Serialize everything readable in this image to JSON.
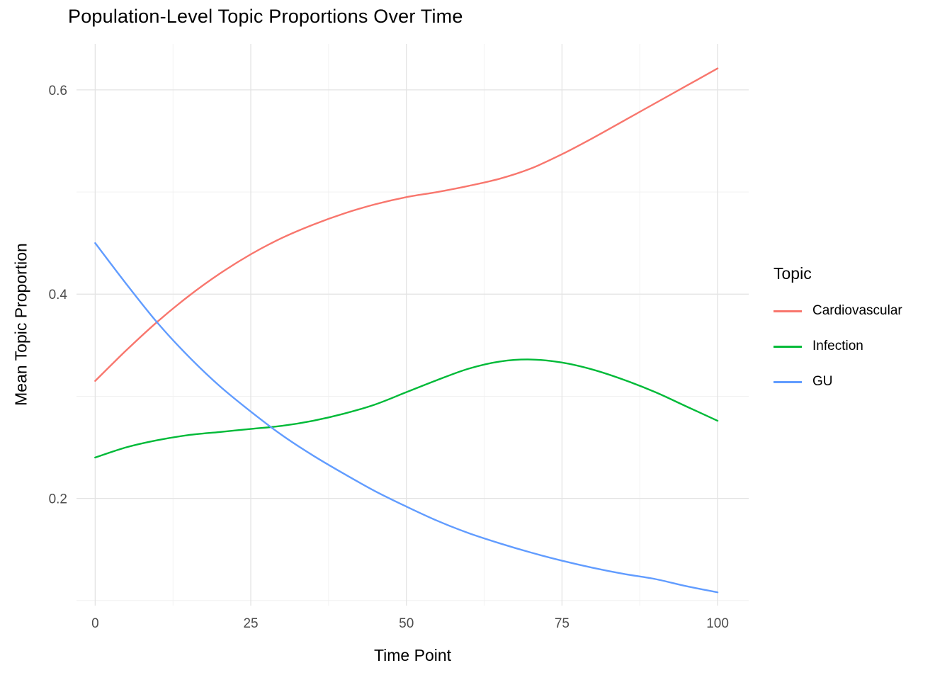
{
  "chart_data": {
    "type": "line",
    "title": "Population-Level Topic Proportions Over Time",
    "xlabel": "Time Point",
    "ylabel": "Mean Topic Proportion",
    "x": [
      0,
      5,
      10,
      15,
      20,
      25,
      30,
      35,
      40,
      45,
      50,
      55,
      60,
      65,
      70,
      75,
      80,
      85,
      90,
      95,
      100
    ],
    "series": [
      {
        "name": "Cardiovascular",
        "color": "#F8766D",
        "values": [
          0.315,
          0.345,
          0.373,
          0.398,
          0.42,
          0.439,
          0.455,
          0.468,
          0.479,
          0.488,
          0.495,
          0.5,
          0.506,
          0.513,
          0.523,
          0.537,
          0.553,
          0.57,
          0.587,
          0.604,
          0.621
        ]
      },
      {
        "name": "Infection",
        "color": "#00BA38",
        "values": [
          0.24,
          0.25,
          0.257,
          0.262,
          0.265,
          0.268,
          0.271,
          0.276,
          0.283,
          0.292,
          0.304,
          0.316,
          0.327,
          0.334,
          0.336,
          0.333,
          0.326,
          0.316,
          0.304,
          0.29,
          0.276
        ]
      },
      {
        "name": "GU",
        "color": "#619CFF",
        "values": [
          0.45,
          0.41,
          0.372,
          0.339,
          0.31,
          0.285,
          0.262,
          0.242,
          0.224,
          0.207,
          0.192,
          0.178,
          0.166,
          0.156,
          0.147,
          0.139,
          0.132,
          0.126,
          0.121,
          0.114,
          0.108
        ]
      }
    ],
    "xlim": [
      -3,
      105
    ],
    "ylim": [
      0.095,
      0.645
    ],
    "x_ticks": {
      "values": [
        0,
        25,
        50,
        75,
        100
      ],
      "labels": [
        "0",
        "25",
        "50",
        "75",
        "100"
      ]
    },
    "y_ticks": {
      "values": [
        0.2,
        0.4,
        0.6
      ],
      "labels": [
        "0.2",
        "0.4",
        "0.6"
      ]
    },
    "x_minor": [
      12.5,
      37.5,
      62.5,
      87.5
    ],
    "y_minor": [
      0.1,
      0.3,
      0.5
    ],
    "grid": "on",
    "legend": {
      "title": "Topic",
      "position": "right",
      "entries": [
        "Cardiovascular",
        "Infection",
        "GU"
      ]
    }
  }
}
